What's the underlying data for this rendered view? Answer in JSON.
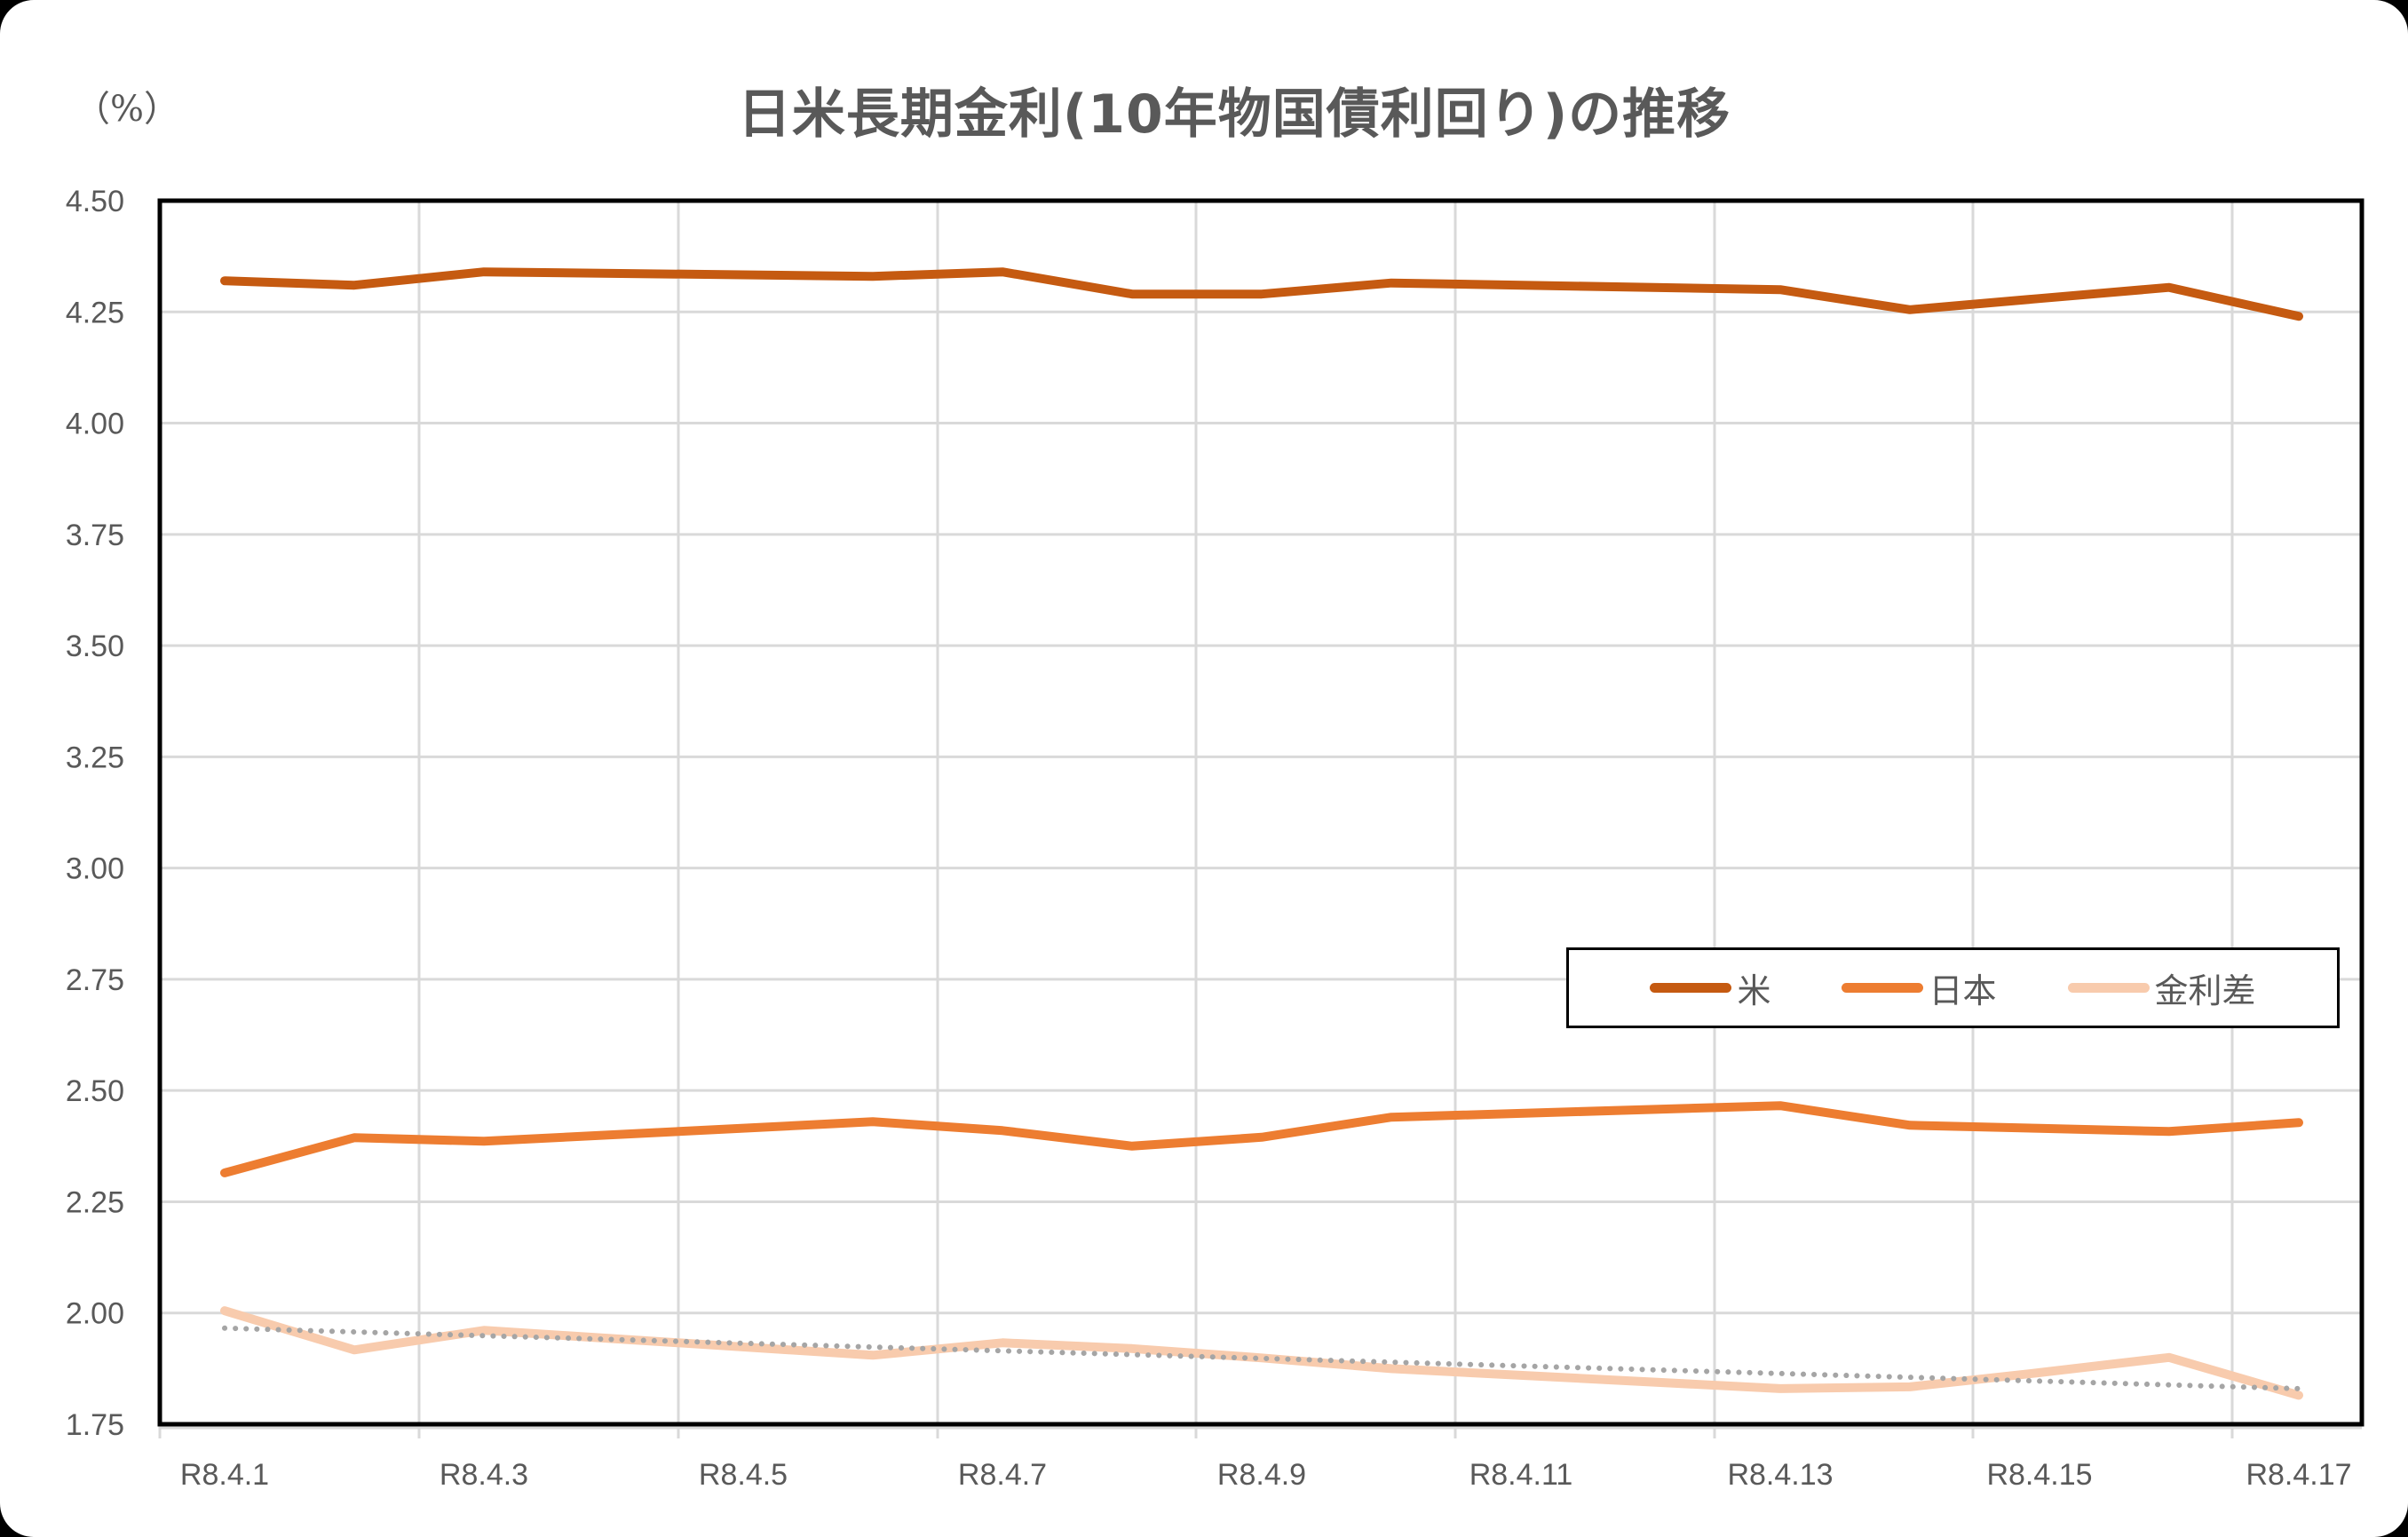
{
  "chart_data": {
    "type": "line",
    "title": "日米長期金利(10年物国債利回り)の推移",
    "ylabel": "(%)",
    "xlabel": "",
    "ylim": [
      1.75,
      4.5
    ],
    "yticks": [
      "4.50",
      "4.25",
      "4.00",
      "3.75",
      "3.50",
      "3.25",
      "3.00",
      "2.75",
      "2.50",
      "2.25",
      "2.00",
      "1.75"
    ],
    "xtick_labels": [
      "R8.4.1",
      "R8.4.3",
      "R8.4.5",
      "R8.4.7",
      "R8.4.9",
      "R8.4.11",
      "R8.4.13",
      "R8.4.15",
      "R8.4.17"
    ],
    "x_day_index": [
      0,
      1,
      2,
      5,
      6,
      7,
      8,
      9,
      12,
      13,
      14,
      15,
      16
    ],
    "x": [
      "R8.4.1",
      "R8.4.2",
      "R8.4.3",
      "R8.4.6",
      "R8.4.7",
      "R8.4.8",
      "R8.4.9",
      "R8.4.10",
      "R8.4.13",
      "R8.4.14",
      "R8.4.15",
      "R8.4.16",
      "R8.4.17"
    ],
    "series": [
      {
        "name": "米",
        "color": "#C55A11",
        "values": [
          4.32,
          4.31,
          4.34,
          4.33,
          4.34,
          4.29,
          4.29,
          4.315,
          4.3,
          4.255,
          4.28,
          4.305,
          4.24
        ]
      },
      {
        "name": "日本",
        "color": "#ED7D31",
        "values": [
          2.315,
          2.394,
          2.386,
          2.43,
          2.41,
          2.375,
          2.395,
          2.44,
          2.466,
          2.422,
          2.415,
          2.408,
          2.428
        ]
      },
      {
        "name": "金利差",
        "color": "#F8CBAD",
        "values": [
          2.005,
          1.917,
          1.961,
          1.905,
          1.933,
          1.92,
          1.899,
          1.875,
          1.83,
          1.834,
          1.866,
          1.9,
          1.815
        ]
      }
    ],
    "trendline": {
      "of": "金利差",
      "type": "linear",
      "style": "dotted",
      "color": "#A5A5A5",
      "start": 1.966,
      "end": 1.83
    },
    "grid": {
      "horizontal": true,
      "vertical": true
    },
    "legend_position": "inside-right-middle"
  },
  "unit_label": "（%）",
  "title": "日米長期金利(10年物国債利回り)の推移",
  "legend": [
    {
      "label": "米",
      "color": "#C55A11"
    },
    {
      "label": "日本",
      "color": "#ED7D31"
    },
    {
      "label": "金利差",
      "color": "#F8CBAD"
    }
  ]
}
